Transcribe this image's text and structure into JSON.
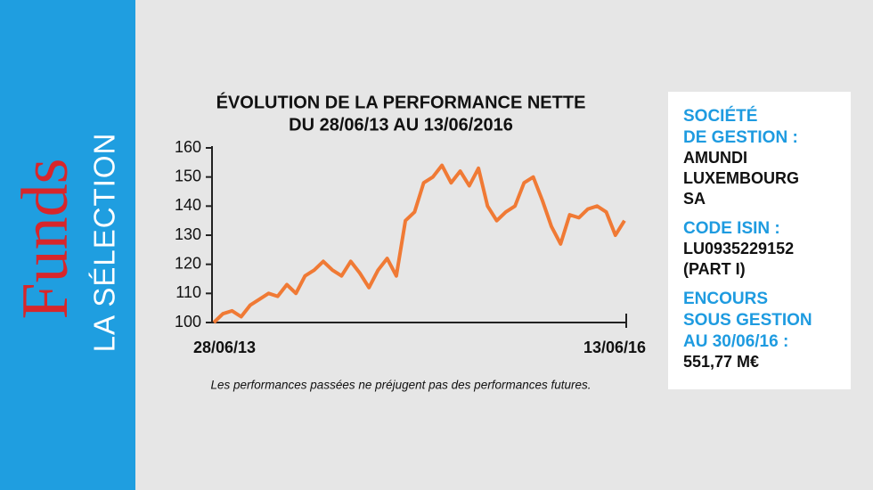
{
  "sidebar": {
    "brand": "Funds",
    "section": "LA SÉLECTION"
  },
  "chart_data": {
    "type": "line",
    "title": "ÉVOLUTION DE LA PERFORMANCE NETTE",
    "subtitle": "DU 28/06/13 AU 13/06/2016",
    "note": "Les performances passées ne préjugent pas des performances futures.",
    "color": "#f07a35",
    "categories": [
      "28/06/13",
      null,
      null,
      null,
      null,
      null,
      null,
      null,
      null,
      null,
      null,
      null,
      null,
      null,
      null,
      null,
      null,
      null,
      null,
      null,
      null,
      null,
      null,
      null,
      null,
      null,
      null,
      null,
      null,
      null,
      null,
      null,
      null,
      null,
      null,
      null,
      null,
      null,
      null,
      null,
      null,
      null,
      null,
      null,
      null,
      "13/06/16"
    ],
    "values": [
      100,
      103,
      104,
      102,
      106,
      108,
      110,
      109,
      113,
      110,
      116,
      118,
      121,
      118,
      116,
      121,
      117,
      112,
      118,
      122,
      116,
      135,
      138,
      148,
      150,
      154,
      148,
      152,
      147,
      153,
      140,
      135,
      138,
      140,
      148,
      150,
      142,
      133,
      127,
      137,
      136,
      139,
      140,
      138,
      130,
      135
    ],
    "ylim": [
      100,
      160
    ],
    "yticks": [
      100,
      110,
      120,
      130,
      140,
      150,
      160
    ]
  },
  "info": [
    {
      "label": [
        "SOCIÉTÉ",
        "DE GESTION :"
      ],
      "value": [
        "AMUNDI",
        "LUXEMBOURG",
        "SA"
      ]
    },
    {
      "label": [
        "CODE ISIN :"
      ],
      "value": [
        "LU0935229152",
        "(PART I)"
      ]
    },
    {
      "label": [
        "ENCOURS",
        "SOUS GESTION",
        "AU 30/06/16 :"
      ],
      "value": [
        "551,77 M€"
      ]
    }
  ]
}
